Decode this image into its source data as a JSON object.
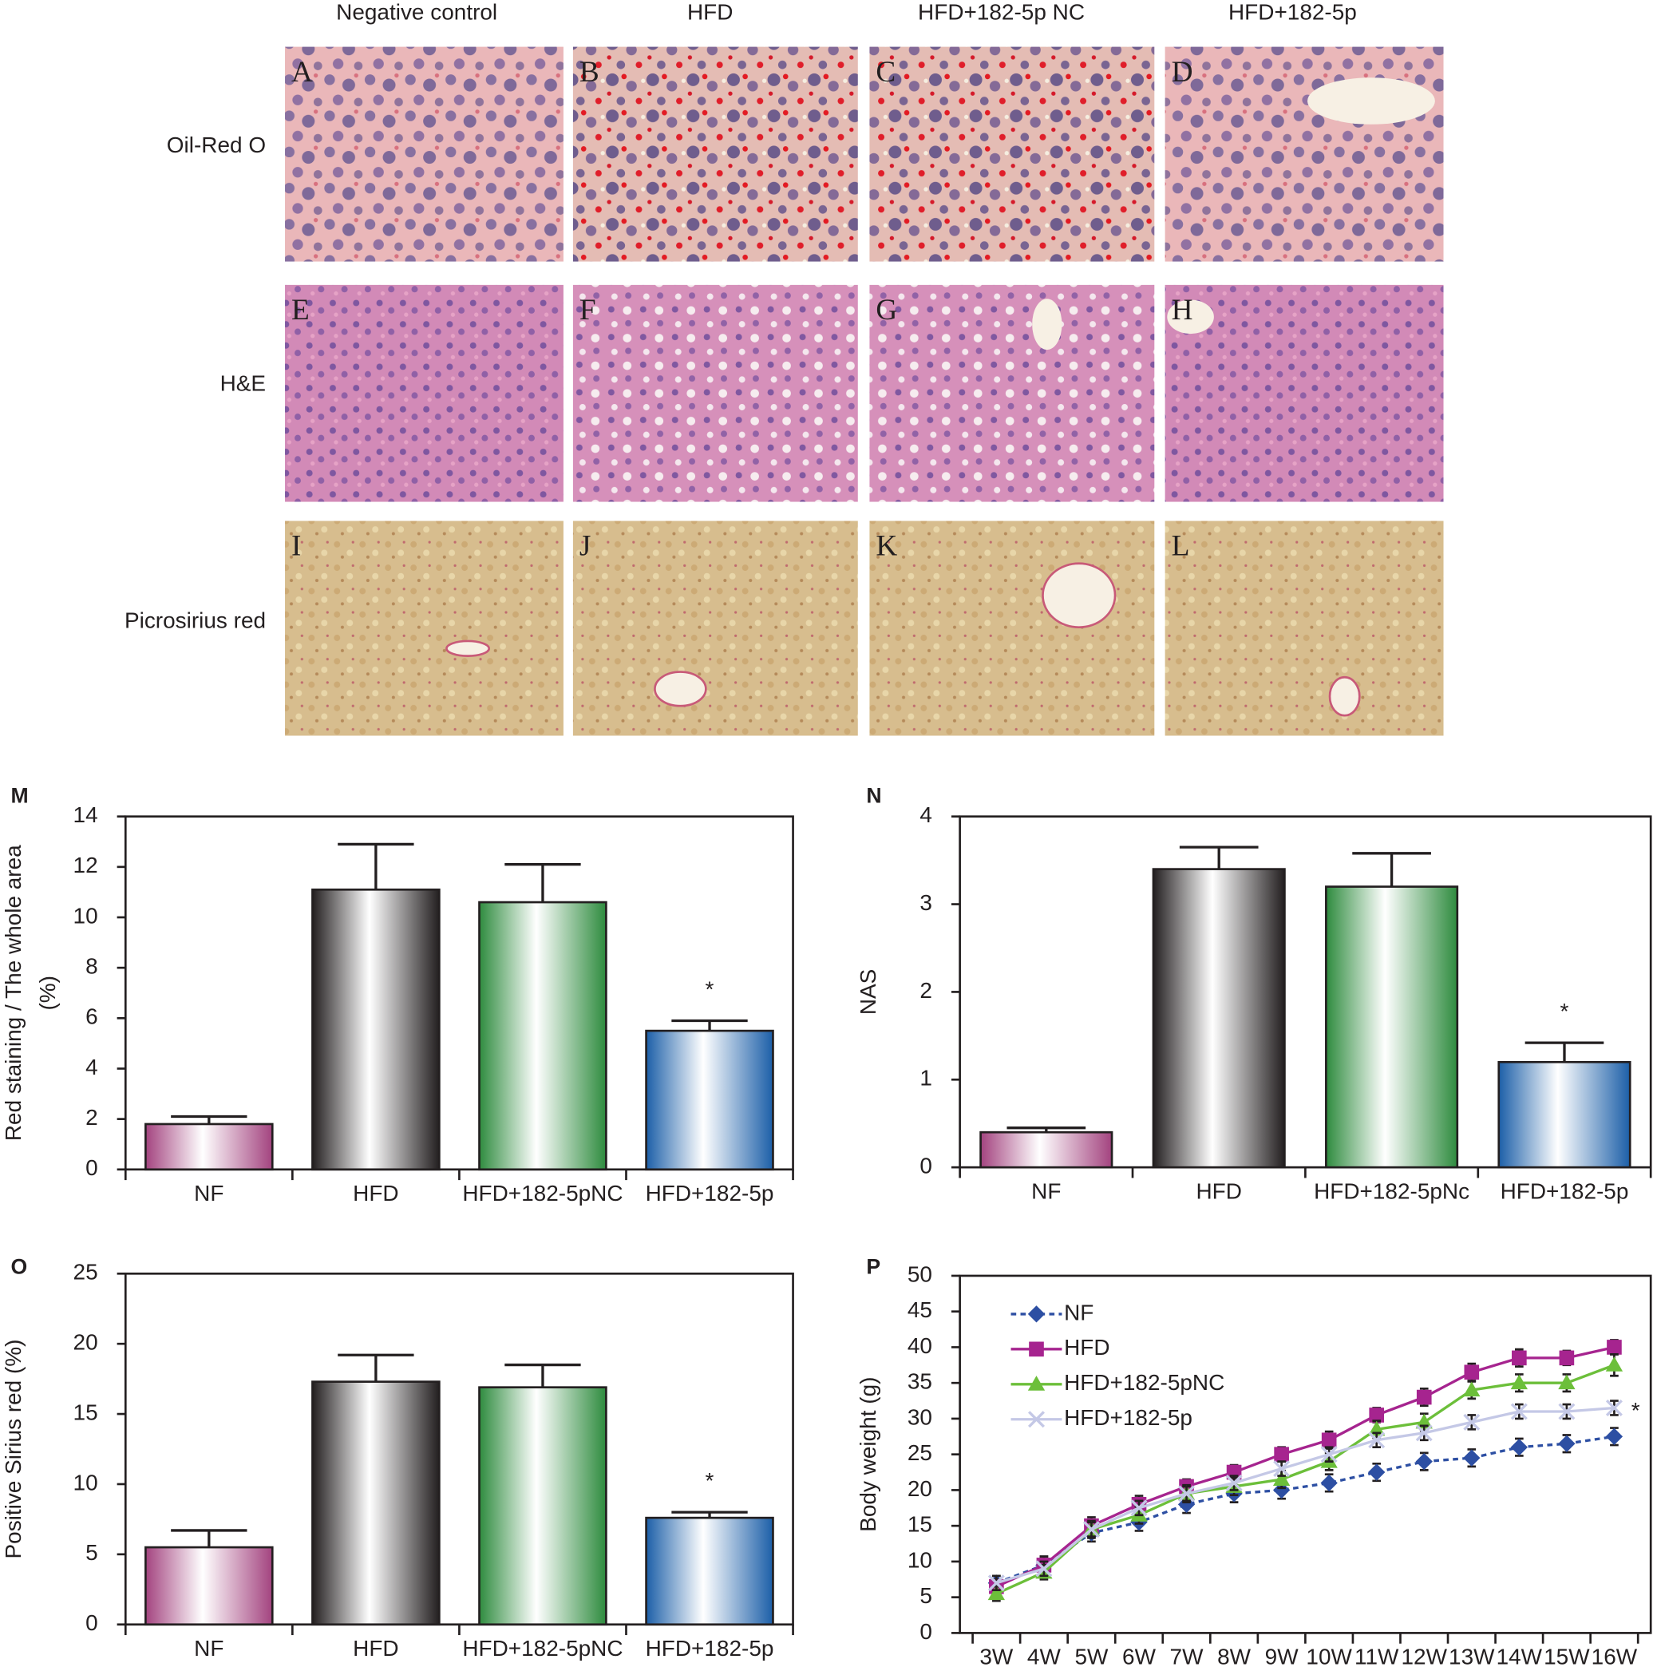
{
  "histology": {
    "column_labels": [
      "Negative control",
      "HFD",
      "HFD+182-5p NC",
      "HFD+182-5p"
    ],
    "row_labels": [
      "Oil-Red O",
      "H&E",
      "Picrosirius red"
    ],
    "panel_letters": [
      "A",
      "B",
      "C",
      "D",
      "E",
      "F",
      "G",
      "H",
      "I",
      "J",
      "K",
      "L"
    ]
  },
  "chart_data": [
    {
      "type": "bar",
      "panel": "M",
      "y_label": [
        "Red staining / The whole area",
        "(%)"
      ],
      "categories": [
        "NF",
        "HFD",
        "HFD+182-5pNC",
        "HFD+182-5p"
      ],
      "values": [
        1.8,
        11.1,
        10.6,
        5.5
      ],
      "errors": [
        0.3,
        1.8,
        1.5,
        0.4
      ],
      "colors": [
        "#a3437f",
        "#231f20",
        "#2e8b3e",
        "#1c5fa8"
      ],
      "ylim": [
        0,
        14
      ],
      "yticks": [
        0,
        2,
        4,
        6,
        8,
        10,
        12,
        14
      ],
      "annotations": [
        {
          "text": "*",
          "category": "HFD+182-5p"
        }
      ]
    },
    {
      "type": "bar",
      "panel": "N",
      "y_label": [
        "NAS"
      ],
      "categories": [
        "NF",
        "HFD",
        "HFD+182-5pNc",
        "HFD+182-5p"
      ],
      "values": [
        0.4,
        3.4,
        3.2,
        1.2
      ],
      "errors": [
        0.05,
        0.25,
        0.38,
        0.22
      ],
      "colors": [
        "#a3437f",
        "#231f20",
        "#2e8b3e",
        "#1c5fa8"
      ],
      "ylim": [
        0,
        4
      ],
      "yticks": [
        0,
        1,
        2,
        3,
        4
      ],
      "annotations": [
        {
          "text": "*",
          "category": "HFD+182-5p"
        }
      ]
    },
    {
      "type": "bar",
      "panel": "O",
      "y_label": [
        "Positive Sirius red (%)"
      ],
      "categories": [
        "NF",
        "HFD",
        "HFD+182-5pNC",
        "HFD+182-5p"
      ],
      "values": [
        5.5,
        17.3,
        16.9,
        7.6
      ],
      "errors": [
        1.2,
        1.9,
        1.6,
        0.4
      ],
      "colors": [
        "#a3437f",
        "#231f20",
        "#2e8b3e",
        "#1c5fa8"
      ],
      "ylim": [
        0,
        25
      ],
      "yticks": [
        0,
        5,
        10,
        15,
        20,
        25
      ],
      "annotations": [
        {
          "text": "*",
          "category": "HFD+182-5p"
        }
      ]
    },
    {
      "type": "line",
      "panel": "P",
      "y_label": [
        "Body weight (g)"
      ],
      "categories": [
        "3W",
        "4W",
        "5W",
        "6W",
        "7W",
        "8W",
        "9W",
        "10W",
        "11W",
        "12W",
        "13W",
        "14W",
        "15W",
        "16W"
      ],
      "ylim": [
        0,
        50
      ],
      "yticks": [
        0,
        5,
        10,
        15,
        20,
        25,
        30,
        35,
        40,
        45,
        50
      ],
      "legend": "upper left",
      "series": [
        {
          "name": "NF",
          "color": "#2d4fa3",
          "marker": "diamond",
          "dashed": true,
          "values": [
            7,
            9.5,
            14,
            15.5,
            18,
            19.5,
            20,
            21,
            22.5,
            24,
            24.5,
            26,
            26.5,
            27.5
          ],
          "errors": [
            1,
            1.2,
            1.2,
            1.2,
            1.2,
            1.2,
            1.2,
            1.2,
            1.2,
            1.2,
            1.2,
            1.2,
            1.2,
            1.2
          ]
        },
        {
          "name": "HFD",
          "color": "#a6248f",
          "marker": "square",
          "dashed": false,
          "values": [
            6.5,
            9.5,
            15,
            18,
            20.5,
            22.5,
            25,
            27,
            30.5,
            33,
            36.5,
            38.5,
            38.5,
            40
          ],
          "errors": [
            1,
            1.2,
            1.2,
            1.2,
            1,
            1,
            1,
            1.2,
            1,
            1.2,
            1.2,
            1.2,
            1,
            1
          ]
        },
        {
          "name": "HFD+182-5pNC",
          "color": "#6cbf3a",
          "marker": "triangle",
          "dashed": false,
          "values": [
            5.5,
            8.5,
            14.5,
            16.5,
            19.5,
            20.5,
            21.5,
            24,
            28.5,
            29.5,
            34,
            35,
            35,
            37.5
          ],
          "errors": [
            1,
            1,
            1.2,
            1.2,
            1.2,
            1.2,
            1.2,
            1.2,
            1.2,
            1.2,
            1.2,
            1.2,
            1.2,
            1.5
          ]
        },
        {
          "name": "HFD+182-5p",
          "color": "#c4c8e6",
          "marker": "x",
          "dashed": false,
          "values": [
            7,
            9,
            14.5,
            17.5,
            19.5,
            21,
            23,
            25,
            27,
            28,
            29.5,
            31,
            31,
            31.5
          ],
          "errors": [
            1,
            1,
            1,
            1,
            1,
            1,
            1,
            1,
            1,
            1,
            1,
            1,
            1,
            1
          ]
        }
      ],
      "annotations": [
        {
          "text": "*",
          "series": "HFD+182-5p"
        }
      ]
    }
  ]
}
